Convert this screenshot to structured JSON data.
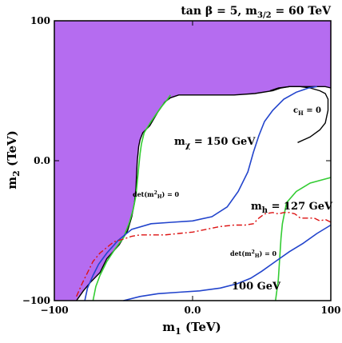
{
  "chart_data": {
    "type": "contour",
    "title": "tan β = 5, m3/2 = 60 TeV",
    "title_parts": {
      "tanb": "tan β = 5, m",
      "sub": "3/2",
      "rest": " = 60 TeV"
    },
    "xlabel": {
      "main": "m",
      "sub": "1",
      "unit": " (TeV)"
    },
    "ylabel": {
      "main": "m",
      "sub": "2",
      "unit": " (TeV)"
    },
    "xlim": [
      -100,
      100
    ],
    "ylim": [
      -100,
      100
    ],
    "x_ticks": [
      {
        "value": -100,
        "label": "−100"
      },
      {
        "value": 0,
        "label": "0.0"
      },
      {
        "value": 100,
        "label": "100"
      }
    ],
    "y_ticks": [
      {
        "value": 100,
        "label": "100"
      },
      {
        "value": 0,
        "label": "0.0"
      },
      {
        "value": -100,
        "label": "−100"
      }
    ],
    "colors": {
      "excluded_region": "#b56cf0",
      "boundary": "#000000",
      "det_contour": "#33cc33",
      "mchi_contour": "#2244cc",
      "mh_contour": "#dd1111"
    },
    "annotations": {
      "mchi": {
        "main": "m",
        "sub": "χ",
        "rest": " = 150 GeV"
      },
      "mh": {
        "main": "m",
        "sub": "h",
        "rest": " = 127 GeV"
      },
      "cH": {
        "main": "c",
        "sub": "H",
        "rest": " = 0"
      },
      "det_upper": {
        "main": "det(m",
        "sup": "2",
        "sub": "H",
        "rest": ") = 0"
      },
      "det_lower": {
        "main": "det(m",
        "sup": "2",
        "sub": "H",
        "rest": ") = 0"
      },
      "m100": "100 GeV"
    },
    "series": [
      {
        "kind": "excluded_region",
        "points": [
          [
            -100,
            100
          ],
          [
            100,
            100
          ],
          [
            100,
            52
          ],
          [
            96,
            53
          ],
          [
            90,
            53
          ],
          [
            78,
            53
          ],
          [
            70,
            53
          ],
          [
            64,
            52
          ],
          [
            58,
            50
          ],
          [
            45,
            48
          ],
          [
            30,
            47
          ],
          [
            20,
            47
          ],
          [
            10,
            47
          ],
          [
            0,
            47
          ],
          [
            -10,
            47
          ],
          [
            -16,
            45
          ],
          [
            -20,
            42
          ],
          [
            -25,
            35
          ],
          [
            -31,
            25
          ],
          [
            -36,
            20
          ],
          [
            -38,
            15
          ],
          [
            -39,
            10
          ],
          [
            -39.5,
            5
          ],
          [
            -40,
            0
          ],
          [
            -40.5,
            -10
          ],
          [
            -41,
            -20
          ],
          [
            -42,
            -30
          ],
          [
            -44,
            -40
          ],
          [
            -47,
            -50
          ],
          [
            -53,
            -60
          ],
          [
            -62,
            -70
          ],
          [
            -67,
            -80
          ],
          [
            -74,
            -87
          ],
          [
            -79,
            -93
          ],
          [
            -84,
            -100
          ],
          [
            -100,
            -100
          ]
        ]
      },
      {
        "kind": "boundary_cH",
        "points": [
          [
            56,
            50
          ],
          [
            62,
            52
          ],
          [
            70,
            53
          ],
          [
            78,
            53
          ],
          [
            85,
            52
          ],
          [
            92,
            50
          ],
          [
            96,
            48
          ],
          [
            98,
            44
          ],
          [
            98,
            36
          ],
          [
            96,
            27
          ],
          [
            92,
            22
          ],
          [
            85,
            17
          ],
          [
            76,
            13
          ]
        ]
      },
      {
        "kind": "det_zero",
        "points": [
          [
            -16,
            47
          ],
          [
            -18,
            44
          ],
          [
            -23,
            38
          ],
          [
            -30,
            28
          ],
          [
            -35,
            20
          ],
          [
            -37,
            12
          ],
          [
            -38,
            5
          ],
          [
            -39,
            -5
          ],
          [
            -40,
            -15
          ],
          [
            -41,
            -25
          ],
          [
            -43,
            -35
          ],
          [
            -46,
            -45
          ],
          [
            -50,
            -55
          ],
          [
            -56,
            -63
          ],
          [
            -62,
            -72
          ],
          [
            -67,
            -82
          ],
          [
            -70,
            -90
          ],
          [
            -72,
            -100
          ]
        ]
      },
      {
        "kind": "det_zero",
        "points": [
          [
            60,
            -100
          ],
          [
            62,
            -85
          ],
          [
            63,
            -70
          ],
          [
            64,
            -55
          ],
          [
            65,
            -45
          ],
          [
            68,
            -30
          ],
          [
            75,
            -22
          ],
          [
            85,
            -16
          ],
          [
            100,
            -12
          ]
        ]
      },
      {
        "kind": "mchi_150",
        "points": [
          [
            90,
            53
          ],
          [
            84,
            52
          ],
          [
            75,
            49
          ],
          [
            66,
            44
          ],
          [
            58,
            36
          ],
          [
            52,
            28
          ],
          [
            48,
            18
          ],
          [
            44,
            6
          ],
          [
            40,
            -8
          ],
          [
            33,
            -22
          ],
          [
            25,
            -33
          ],
          [
            14,
            -40
          ],
          [
            0,
            -43
          ],
          [
            -15,
            -44
          ],
          [
            -30,
            -45
          ],
          [
            -44,
            -49
          ],
          [
            -54,
            -57
          ],
          [
            -62,
            -66
          ],
          [
            -68,
            -74
          ],
          [
            -72,
            -82
          ],
          [
            -76,
            -91
          ],
          [
            -78,
            -100
          ]
        ]
      },
      {
        "kind": "mchi_100",
        "points": [
          [
            100,
            -46
          ],
          [
            90,
            -52
          ],
          [
            80,
            -59
          ],
          [
            70,
            -65
          ],
          [
            60,
            -72
          ],
          [
            50,
            -79
          ],
          [
            42,
            -84
          ],
          [
            32,
            -88
          ],
          [
            20,
            -91
          ],
          [
            5,
            -93
          ],
          [
            -10,
            -94
          ],
          [
            -25,
            -95
          ],
          [
            -38,
            -97
          ],
          [
            -50,
            -100
          ]
        ]
      },
      {
        "kind": "mh_127",
        "points": [
          [
            -84,
            -97
          ],
          [
            -80,
            -88
          ],
          [
            -76,
            -80
          ],
          [
            -72,
            -72
          ],
          [
            -67,
            -66
          ],
          [
            -62,
            -62
          ],
          [
            -57,
            -58
          ],
          [
            -50,
            -56
          ],
          [
            -44,
            -54
          ],
          [
            -38,
            -53
          ],
          [
            -30,
            -53
          ],
          [
            -20,
            -53
          ],
          [
            -10,
            -52
          ],
          [
            0,
            -51
          ],
          [
            10,
            -49
          ],
          [
            20,
            -47
          ],
          [
            30,
            -46
          ],
          [
            38,
            -46
          ],
          [
            44,
            -45
          ],
          [
            48,
            -41
          ],
          [
            52,
            -38
          ],
          [
            58,
            -37
          ],
          [
            62,
            -38
          ],
          [
            66,
            -37
          ],
          [
            70,
            -37
          ],
          [
            74,
            -38
          ],
          [
            78,
            -41
          ],
          [
            84,
            -41
          ],
          [
            88,
            -41
          ],
          [
            92,
            -43
          ],
          [
            96,
            -42
          ],
          [
            100,
            -44
          ]
        ]
      }
    ],
    "grid": false
  }
}
